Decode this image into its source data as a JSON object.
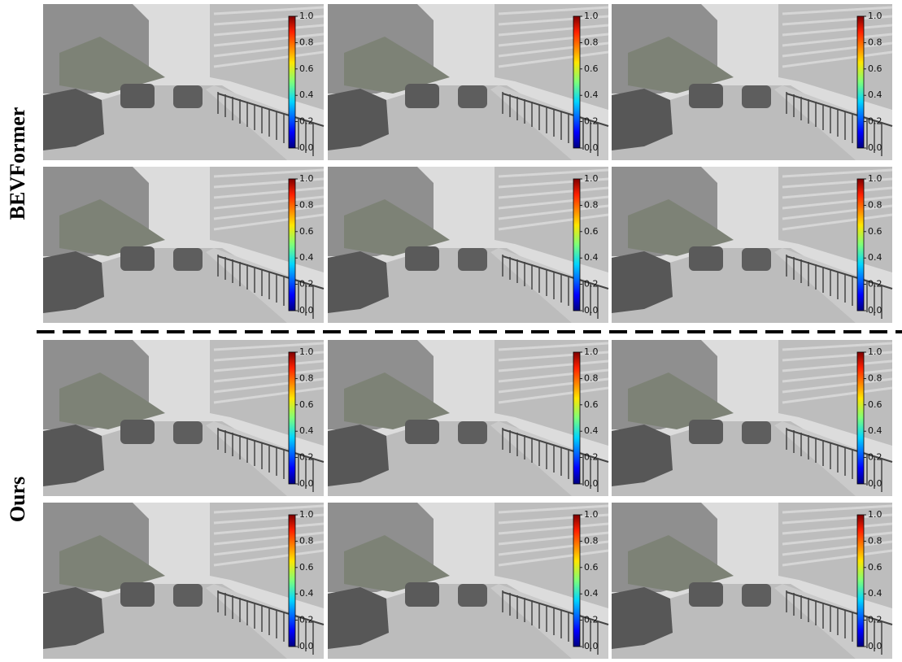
{
  "groups": [
    {
      "label": "BEVFormer"
    },
    {
      "label": "Ours"
    }
  ],
  "colorbar": {
    "range": [
      0,
      1
    ],
    "ticks": [
      {
        "value": 0,
        "label": "0.0"
      },
      {
        "value": 0.2,
        "label": "0.2"
      },
      {
        "value": 0.4,
        "label": "0.4"
      },
      {
        "value": 0.6,
        "label": "0.6"
      },
      {
        "value": 0.8,
        "label": "0.8"
      },
      {
        "value": 1,
        "label": "1.0"
      }
    ]
  }
}
